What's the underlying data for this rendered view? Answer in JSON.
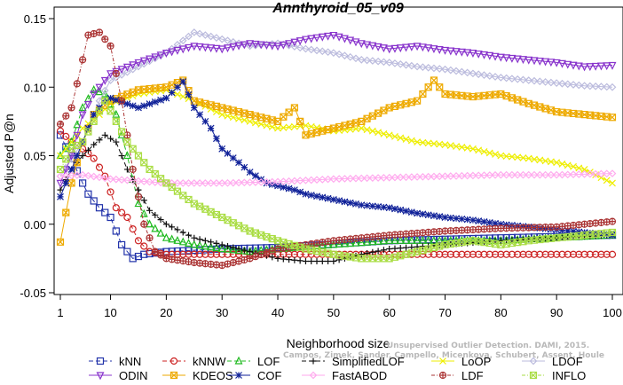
{
  "chart_data": {
    "type": "line",
    "title": "Annthyroid_05_v09",
    "xlabel": "Neighborhood size",
    "ylabel": "Adjusted P@n",
    "xlim": [
      1,
      100
    ],
    "ylim": [
      -0.05,
      0.15
    ],
    "x_ticks": [
      1,
      10,
      20,
      30,
      40,
      50,
      60,
      70,
      80,
      90,
      100
    ],
    "y_ticks": [
      -0.05,
      0.0,
      0.05,
      0.1,
      0.15
    ],
    "y_tick_labels": [
      "-0.05",
      "0.00",
      "0.05",
      "0.10",
      "0.15"
    ],
    "grid": false,
    "legend_position": "bottom",
    "watermark": [
      "Unsupervised Outlier Detection. DAMI, 2015.",
      "Campos, Zimek, Sander, Campello, Micenkova, Schubert, Assent, Houle"
    ],
    "series": [
      {
        "name": "kNN",
        "color": "#2233aa",
        "marker": "square",
        "dash": "5,3",
        "points": [
          [
            1,
            0.065
          ],
          [
            3,
            0.048
          ],
          [
            5,
            0.03
          ],
          [
            6,
            0.022
          ],
          [
            8,
            0.012
          ],
          [
            10,
            0.005
          ],
          [
            12,
            -0.015
          ],
          [
            14,
            -0.025
          ],
          [
            16,
            -0.022
          ],
          [
            20,
            -0.02
          ],
          [
            30,
            -0.018
          ],
          [
            40,
            -0.017
          ],
          [
            60,
            -0.012
          ],
          [
            80,
            -0.01
          ],
          [
            100,
            -0.008
          ]
        ]
      },
      {
        "name": "kNNW",
        "color": "#cc2222",
        "marker": "circle",
        "dash": "5,3",
        "points": [
          [
            1,
            0.068
          ],
          [
            3,
            0.06
          ],
          [
            5,
            0.055
          ],
          [
            7,
            0.048
          ],
          [
            9,
            0.035
          ],
          [
            11,
            0.012
          ],
          [
            13,
            0.005
          ],
          [
            15,
            -0.012
          ],
          [
            17,
            -0.02
          ],
          [
            20,
            -0.022
          ],
          [
            40,
            -0.022
          ],
          [
            60,
            -0.022
          ],
          [
            80,
            -0.022
          ],
          [
            100,
            -0.022
          ]
        ]
      },
      {
        "name": "LOF",
        "color": "#22bb22",
        "marker": "triangle",
        "dash": "5,3",
        "points": [
          [
            1,
            0.05
          ],
          [
            3,
            0.06
          ],
          [
            5,
            0.085
          ],
          [
            7,
            0.098
          ],
          [
            9,
            0.095
          ],
          [
            11,
            0.08
          ],
          [
            13,
            0.05
          ],
          [
            15,
            0.015
          ],
          [
            17,
            0.0
          ],
          [
            20,
            -0.01
          ],
          [
            25,
            -0.015
          ],
          [
            30,
            -0.018
          ],
          [
            35,
            -0.02
          ],
          [
            40,
            -0.018
          ],
          [
            50,
            -0.015
          ],
          [
            60,
            -0.012
          ],
          [
            70,
            -0.012
          ],
          [
            80,
            -0.012
          ],
          [
            90,
            -0.01
          ],
          [
            100,
            -0.008
          ]
        ]
      },
      {
        "name": "SimplifiedLOF",
        "color": "#111111",
        "marker": "plus",
        "dash": "5,3",
        "points": [
          [
            1,
            0.025
          ],
          [
            3,
            0.04
          ],
          [
            5,
            0.05
          ],
          [
            7,
            0.058
          ],
          [
            9,
            0.065
          ],
          [
            11,
            0.06
          ],
          [
            13,
            0.04
          ],
          [
            15,
            0.025
          ],
          [
            17,
            0.01
          ],
          [
            20,
            0.0
          ],
          [
            25,
            -0.01
          ],
          [
            30,
            -0.015
          ],
          [
            35,
            -0.02
          ],
          [
            40,
            -0.025
          ],
          [
            45,
            -0.027
          ],
          [
            50,
            -0.027
          ],
          [
            55,
            -0.022
          ],
          [
            60,
            -0.018
          ],
          [
            70,
            -0.015
          ],
          [
            80,
            -0.012
          ],
          [
            90,
            -0.01
          ],
          [
            100,
            -0.008
          ]
        ]
      },
      {
        "name": "LoOP",
        "color": "#eeee00",
        "marker": "cross",
        "dash": "",
        "points": [
          [
            1,
            0.05
          ],
          [
            3,
            0.06
          ],
          [
            5,
            0.07
          ],
          [
            8,
            0.08
          ],
          [
            10,
            0.088
          ],
          [
            15,
            0.095
          ],
          [
            20,
            0.098
          ],
          [
            25,
            0.09
          ],
          [
            30,
            0.08
          ],
          [
            35,
            0.075
          ],
          [
            40,
            0.07
          ],
          [
            45,
            0.072
          ],
          [
            50,
            0.068
          ],
          [
            55,
            0.07
          ],
          [
            60,
            0.065
          ],
          [
            65,
            0.06
          ],
          [
            70,
            0.058
          ],
          [
            75,
            0.055
          ],
          [
            80,
            0.05
          ],
          [
            85,
            0.048
          ],
          [
            90,
            0.045
          ],
          [
            95,
            0.04
          ],
          [
            100,
            0.03
          ]
        ]
      },
      {
        "name": "LDOF",
        "color": "#bbbbdd",
        "marker": "diamond",
        "dash": "",
        "points": [
          [
            1,
            0.035
          ],
          [
            5,
            0.06
          ],
          [
            8,
            0.09
          ],
          [
            10,
            0.105
          ],
          [
            15,
            0.115
          ],
          [
            20,
            0.125
          ],
          [
            25,
            0.14
          ],
          [
            30,
            0.135
          ],
          [
            35,
            0.13
          ],
          [
            40,
            0.132
          ],
          [
            45,
            0.128
          ],
          [
            50,
            0.125
          ],
          [
            55,
            0.12
          ],
          [
            60,
            0.118
          ],
          [
            65,
            0.115
          ],
          [
            70,
            0.113
          ],
          [
            75,
            0.11
          ],
          [
            80,
            0.107
          ],
          [
            85,
            0.105
          ],
          [
            90,
            0.103
          ],
          [
            95,
            0.101
          ],
          [
            100,
            0.1
          ]
        ]
      },
      {
        "name": "ODIN",
        "color": "#8833cc",
        "marker": "triangle-down",
        "dash": "",
        "points": [
          [
            1,
            0.03
          ],
          [
            3,
            0.05
          ],
          [
            5,
            0.08
          ],
          [
            7,
            0.095
          ],
          [
            9,
            0.105
          ],
          [
            10,
            0.11
          ],
          [
            15,
            0.118
          ],
          [
            20,
            0.125
          ],
          [
            25,
            0.13
          ],
          [
            30,
            0.128
          ],
          [
            35,
            0.132
          ],
          [
            40,
            0.13
          ],
          [
            45,
            0.135
          ],
          [
            50,
            0.138
          ],
          [
            55,
            0.132
          ],
          [
            60,
            0.128
          ],
          [
            65,
            0.13
          ],
          [
            70,
            0.127
          ],
          [
            75,
            0.125
          ],
          [
            80,
            0.122
          ],
          [
            85,
            0.12
          ],
          [
            90,
            0.118
          ],
          [
            95,
            0.115
          ],
          [
            100,
            0.116
          ]
        ]
      },
      {
        "name": "KDEOS",
        "color": "#eeaa00",
        "marker": "square-x",
        "dash": "",
        "points": [
          [
            1,
            -0.013
          ],
          [
            3,
            0.03
          ],
          [
            5,
            0.06
          ],
          [
            7,
            0.08
          ],
          [
            10,
            0.09
          ],
          [
            15,
            0.098
          ],
          [
            20,
            0.1
          ],
          [
            23,
            0.105
          ],
          [
            25,
            0.09
          ],
          [
            30,
            0.085
          ],
          [
            35,
            0.08
          ],
          [
            40,
            0.075
          ],
          [
            43,
            0.085
          ],
          [
            45,
            0.065
          ],
          [
            50,
            0.07
          ],
          [
            55,
            0.075
          ],
          [
            60,
            0.085
          ],
          [
            65,
            0.09
          ],
          [
            68,
            0.105
          ],
          [
            70,
            0.095
          ],
          [
            75,
            0.093
          ],
          [
            80,
            0.095
          ],
          [
            85,
            0.088
          ],
          [
            90,
            0.082
          ],
          [
            95,
            0.08
          ],
          [
            100,
            0.078
          ]
        ]
      },
      {
        "name": "COF",
        "color": "#112299",
        "marker": "asterisk",
        "dash": "",
        "points": [
          [
            1,
            0.02
          ],
          [
            3,
            0.04
          ],
          [
            5,
            0.06
          ],
          [
            7,
            0.08
          ],
          [
            9,
            0.09
          ],
          [
            10,
            0.092
          ],
          [
            15,
            0.085
          ],
          [
            20,
            0.092
          ],
          [
            22,
            0.1
          ],
          [
            23,
            0.104
          ],
          [
            25,
            0.085
          ],
          [
            28,
            0.07
          ],
          [
            30,
            0.055
          ],
          [
            33,
            0.045
          ],
          [
            35,
            0.038
          ],
          [
            38,
            0.03
          ],
          [
            40,
            0.028
          ],
          [
            43,
            0.025
          ],
          [
            45,
            0.022
          ],
          [
            50,
            0.018
          ],
          [
            55,
            0.014
          ],
          [
            60,
            0.012
          ],
          [
            65,
            0.008
          ],
          [
            70,
            0.005
          ],
          [
            75,
            0.003
          ],
          [
            80,
            0.0
          ],
          [
            85,
            -0.002
          ],
          [
            90,
            -0.004
          ],
          [
            95,
            -0.006
          ],
          [
            100,
            -0.008
          ]
        ]
      },
      {
        "name": "FastABOD",
        "color": "#ffaaee",
        "marker": "diamond",
        "dash": "",
        "points": [
          [
            1,
            0.035
          ],
          [
            5,
            0.036
          ],
          [
            10,
            0.033
          ],
          [
            20,
            0.03
          ],
          [
            30,
            0.03
          ],
          [
            40,
            0.031
          ],
          [
            50,
            0.033
          ],
          [
            60,
            0.034
          ],
          [
            70,
            0.035
          ],
          [
            80,
            0.036
          ],
          [
            90,
            0.036
          ],
          [
            100,
            0.037
          ]
        ]
      },
      {
        "name": "LDF",
        "color": "#aa3333",
        "marker": "circle-plus",
        "dash": "4,2,1,2",
        "points": [
          [
            1,
            0.073
          ],
          [
            3,
            0.085
          ],
          [
            5,
            0.12
          ],
          [
            6,
            0.138
          ],
          [
            8,
            0.14
          ],
          [
            10,
            0.13
          ],
          [
            12,
            0.09
          ],
          [
            14,
            0.04
          ],
          [
            16,
            0.0
          ],
          [
            18,
            -0.02
          ],
          [
            20,
            -0.025
          ],
          [
            25,
            -0.028
          ],
          [
            30,
            -0.03
          ],
          [
            35,
            -0.025
          ],
          [
            40,
            -0.018
          ],
          [
            50,
            -0.012
          ],
          [
            60,
            -0.008
          ],
          [
            70,
            -0.005
          ],
          [
            80,
            -0.003
          ],
          [
            90,
            -0.002
          ],
          [
            100,
            0.002
          ]
        ]
      },
      {
        "name": "INFLO",
        "color": "#aadd44",
        "marker": "square-x",
        "dash": "4,2,1,2",
        "points": [
          [
            1,
            0.04
          ],
          [
            3,
            0.055
          ],
          [
            5,
            0.06
          ],
          [
            7,
            0.075
          ],
          [
            9,
            0.09
          ],
          [
            11,
            0.075
          ],
          [
            13,
            0.06
          ],
          [
            15,
            0.05
          ],
          [
            17,
            0.04
          ],
          [
            20,
            0.03
          ],
          [
            25,
            0.015
          ],
          [
            30,
            0.005
          ],
          [
            35,
            -0.005
          ],
          [
            40,
            -0.012
          ],
          [
            45,
            -0.018
          ],
          [
            50,
            -0.022
          ],
          [
            55,
            -0.025
          ],
          [
            60,
            -0.025
          ],
          [
            65,
            -0.02
          ],
          [
            70,
            -0.015
          ],
          [
            75,
            -0.012
          ],
          [
            80,
            -0.015
          ],
          [
            85,
            -0.012
          ],
          [
            90,
            -0.01
          ],
          [
            95,
            -0.008
          ],
          [
            100,
            -0.006
          ]
        ]
      }
    ],
    "legend_order": [
      "kNN",
      "kNNW",
      "LOF",
      "SimplifiedLOF",
      "LoOP",
      "LDOF",
      "ODIN",
      "KDEOS",
      "COF",
      "FastABOD",
      "LDF",
      "INFLO"
    ]
  }
}
